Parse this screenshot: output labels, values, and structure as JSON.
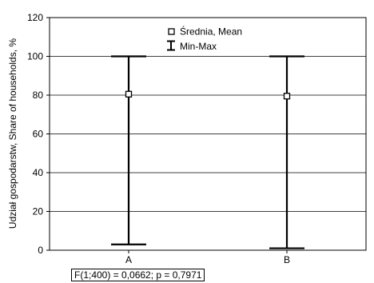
{
  "chart_data": {
    "type": "error-bar",
    "categories": [
      "A",
      "B"
    ],
    "series": [
      {
        "name": "Średnia, Mean",
        "values": [
          80.5,
          79.5
        ]
      },
      {
        "name": "Min-Max",
        "min": [
          3,
          1
        ],
        "max": [
          100,
          100
        ]
      }
    ],
    "ylabel": "Udział gospodarstw, Share of households, %",
    "xlabel": "",
    "ylim": [
      0,
      120
    ],
    "yticks": [
      0,
      20,
      40,
      60,
      80,
      100,
      120
    ],
    "grid": true,
    "legend_position": "top-center",
    "annotation": "F(1;400) = 0,0662; p = 0,7971"
  },
  "legend": {
    "mean_label": "Średnia, Mean",
    "range_label": "Min-Max"
  }
}
